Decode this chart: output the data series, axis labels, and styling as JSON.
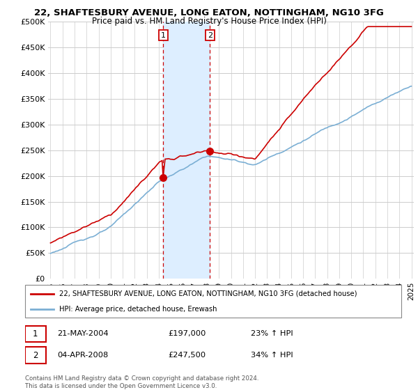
{
  "title": "22, SHAFTESBURY AVENUE, LONG EATON, NOTTINGHAM, NG10 3FG",
  "subtitle": "Price paid vs. HM Land Registry's House Price Index (HPI)",
  "ylabel_ticks": [
    "£0",
    "£50K",
    "£100K",
    "£150K",
    "£200K",
    "£250K",
    "£300K",
    "£350K",
    "£400K",
    "£450K",
    "£500K"
  ],
  "ytick_values": [
    0,
    50000,
    100000,
    150000,
    200000,
    250000,
    300000,
    350000,
    400000,
    450000,
    500000
  ],
  "ylim": [
    0,
    500000
  ],
  "xlim_start": 1994.8,
  "xlim_end": 2025.2,
  "marker1_x": 2004.38,
  "marker1_y": 197000,
  "marker2_x": 2008.25,
  "marker2_y": 247500,
  "shade_x1": 2004.38,
  "shade_x2": 2008.25,
  "legend_line1": "22, SHAFTESBURY AVENUE, LONG EATON, NOTTINGHAM, NG10 3FG (detached house)",
  "legend_line2": "HPI: Average price, detached house, Erewash",
  "table_row1_date": "21-MAY-2004",
  "table_row1_price": "£197,000",
  "table_row1_hpi": "23% ↑ HPI",
  "table_row2_date": "04-APR-2008",
  "table_row2_price": "£247,500",
  "table_row2_hpi": "34% ↑ HPI",
  "footer": "Contains HM Land Registry data © Crown copyright and database right 2024.\nThis data is licensed under the Open Government Licence v3.0.",
  "red_color": "#cc0000",
  "blue_color": "#7bafd4",
  "shade_color": "#ddeeff",
  "grid_color": "#cccccc",
  "bg_color": "#ffffff"
}
